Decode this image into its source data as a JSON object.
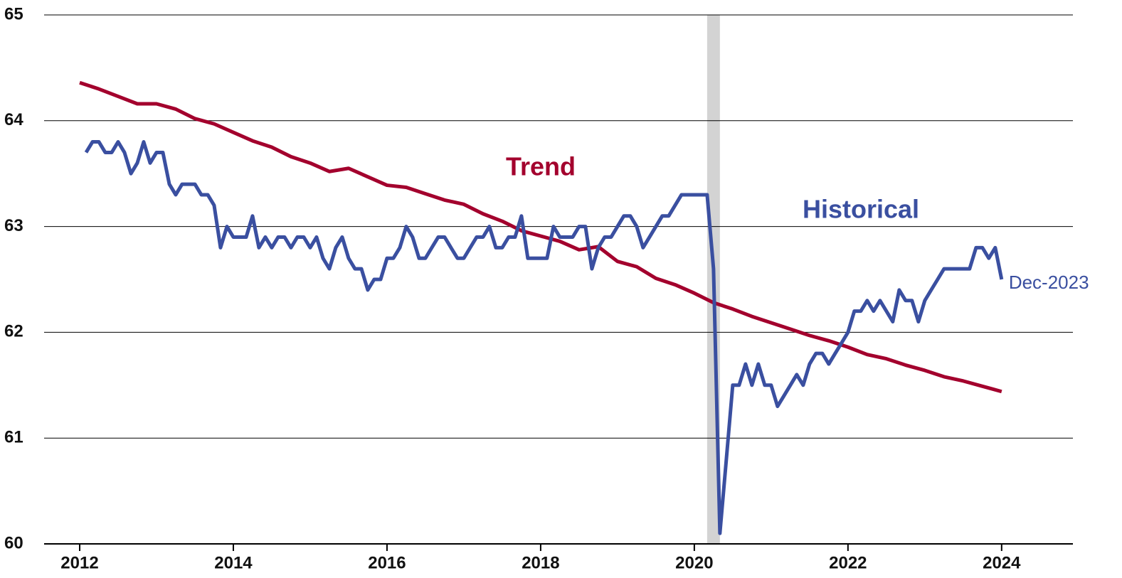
{
  "chart_data": {
    "type": "line",
    "xlim": [
      2011.5,
      2024.9
    ],
    "xticks": [
      2012,
      2014,
      2016,
      2018,
      2020,
      2022,
      2024
    ],
    "ylim": [
      60,
      65
    ],
    "yticks": [
      60,
      61,
      62,
      63,
      64,
      65
    ],
    "grid": true,
    "shaded_period": [
      2020.167,
      2020.333
    ],
    "shade_color": "#d3d3d3",
    "series": [
      {
        "name": "Trend",
        "color": "#a3002d",
        "x": [
          2012,
          2012.25,
          2012.5,
          2012.75,
          2013,
          2013.25,
          2013.5,
          2013.75,
          2014,
          2014.25,
          2014.5,
          2014.75,
          2015,
          2015.25,
          2015.5,
          2015.75,
          2016,
          2016.25,
          2016.5,
          2016.75,
          2017,
          2017.25,
          2017.5,
          2017.75,
          2018,
          2018.25,
          2018.5,
          2018.75,
          2019,
          2019.25,
          2019.5,
          2019.75,
          2020,
          2020.25,
          2020.5,
          2020.75,
          2021,
          2021.25,
          2021.5,
          2021.75,
          2022,
          2022.25,
          2022.5,
          2022.75,
          2023,
          2023.25,
          2023.5,
          2023.75,
          2024
        ],
        "values": [
          64.36,
          64.3,
          64.23,
          64.16,
          64.16,
          64.11,
          64.02,
          63.97,
          63.89,
          63.81,
          63.75,
          63.66,
          63.6,
          63.52,
          63.55,
          63.47,
          63.39,
          63.37,
          63.31,
          63.25,
          63.21,
          63.12,
          63.05,
          62.96,
          62.91,
          62.86,
          62.78,
          62.81,
          62.67,
          62.62,
          62.51,
          62.45,
          62.37,
          62.28,
          62.22,
          62.15,
          62.09,
          62.03,
          61.97,
          61.92,
          61.86,
          61.79,
          61.75,
          61.69,
          61.64,
          61.58,
          61.54,
          61.49,
          61.44
        ]
      },
      {
        "name": "Historical",
        "color": "#3a4fa0",
        "end_label": "Dec-2023",
        "x": [
          2012.083,
          2012.167,
          2012.25,
          2012.333,
          2012.417,
          2012.5,
          2012.583,
          2012.667,
          2012.75,
          2012.833,
          2012.917,
          2013,
          2013.083,
          2013.167,
          2013.25,
          2013.333,
          2013.417,
          2013.5,
          2013.583,
          2013.667,
          2013.75,
          2013.833,
          2013.917,
          2014,
          2014.083,
          2014.167,
          2014.25,
          2014.333,
          2014.417,
          2014.5,
          2014.583,
          2014.667,
          2014.75,
          2014.833,
          2014.917,
          2015,
          2015.083,
          2015.167,
          2015.25,
          2015.333,
          2015.417,
          2015.5,
          2015.583,
          2015.667,
          2015.75,
          2015.833,
          2015.917,
          2016,
          2016.083,
          2016.167,
          2016.25,
          2016.333,
          2016.417,
          2016.5,
          2016.583,
          2016.667,
          2016.75,
          2016.833,
          2016.917,
          2017,
          2017.083,
          2017.167,
          2017.25,
          2017.333,
          2017.417,
          2017.5,
          2017.583,
          2017.667,
          2017.75,
          2017.833,
          2017.917,
          2018,
          2018.083,
          2018.167,
          2018.25,
          2018.333,
          2018.417,
          2018.5,
          2018.583,
          2018.667,
          2018.75,
          2018.833,
          2018.917,
          2019,
          2019.083,
          2019.167,
          2019.25,
          2019.333,
          2019.417,
          2019.5,
          2019.583,
          2019.667,
          2019.75,
          2019.833,
          2019.917,
          2020,
          2020.083,
          2020.167,
          2020.25,
          2020.333,
          2020.417,
          2020.5,
          2020.583,
          2020.667,
          2020.75,
          2020.833,
          2020.917,
          2021,
          2021.083,
          2021.167,
          2021.25,
          2021.333,
          2021.417,
          2021.5,
          2021.583,
          2021.667,
          2021.75,
          2021.833,
          2021.917,
          2022,
          2022.083,
          2022.167,
          2022.25,
          2022.333,
          2022.417,
          2022.5,
          2022.583,
          2022.667,
          2022.75,
          2022.833,
          2022.917,
          2023,
          2023.083,
          2023.167,
          2023.25,
          2023.333,
          2023.417,
          2023.5,
          2023.583,
          2023.667,
          2023.75,
          2023.833,
          2023.917,
          2024
        ],
        "values": [
          63.7,
          63.8,
          63.8,
          63.7,
          63.7,
          63.8,
          63.7,
          63.5,
          63.6,
          63.8,
          63.6,
          63.7,
          63.7,
          63.4,
          63.3,
          63.4,
          63.4,
          63.4,
          63.3,
          63.3,
          63.2,
          62.8,
          63.0,
          62.9,
          62.9,
          62.9,
          63.1,
          62.8,
          62.9,
          62.8,
          62.9,
          62.9,
          62.8,
          62.9,
          62.9,
          62.8,
          62.9,
          62.7,
          62.6,
          62.8,
          62.9,
          62.7,
          62.6,
          62.6,
          62.4,
          62.5,
          62.5,
          62.7,
          62.7,
          62.8,
          63.0,
          62.9,
          62.7,
          62.7,
          62.8,
          62.9,
          62.9,
          62.8,
          62.7,
          62.7,
          62.8,
          62.9,
          62.9,
          63.0,
          62.8,
          62.8,
          62.9,
          62.9,
          63.1,
          62.7,
          62.7,
          62.7,
          62.7,
          63.0,
          62.9,
          62.9,
          62.9,
          63.0,
          63.0,
          62.6,
          62.8,
          62.9,
          62.9,
          63.0,
          63.1,
          63.1,
          63.0,
          62.8,
          62.9,
          63.0,
          63.1,
          63.1,
          63.2,
          63.3,
          63.3,
          63.3,
          63.3,
          63.3,
          62.6,
          60.1,
          60.8,
          61.5,
          61.5,
          61.7,
          61.5,
          61.7,
          61.5,
          61.5,
          61.3,
          61.4,
          61.5,
          61.6,
          61.5,
          61.7,
          61.8,
          61.8,
          61.7,
          61.8,
          61.9,
          62.0,
          62.2,
          62.2,
          62.3,
          62.2,
          62.3,
          62.2,
          62.1,
          62.4,
          62.3,
          62.3,
          62.1,
          62.3,
          62.4,
          62.5,
          62.6,
          62.6,
          62.6,
          62.6,
          62.6,
          62.8,
          62.8,
          62.7,
          62.8,
          62.5
        ]
      }
    ]
  }
}
